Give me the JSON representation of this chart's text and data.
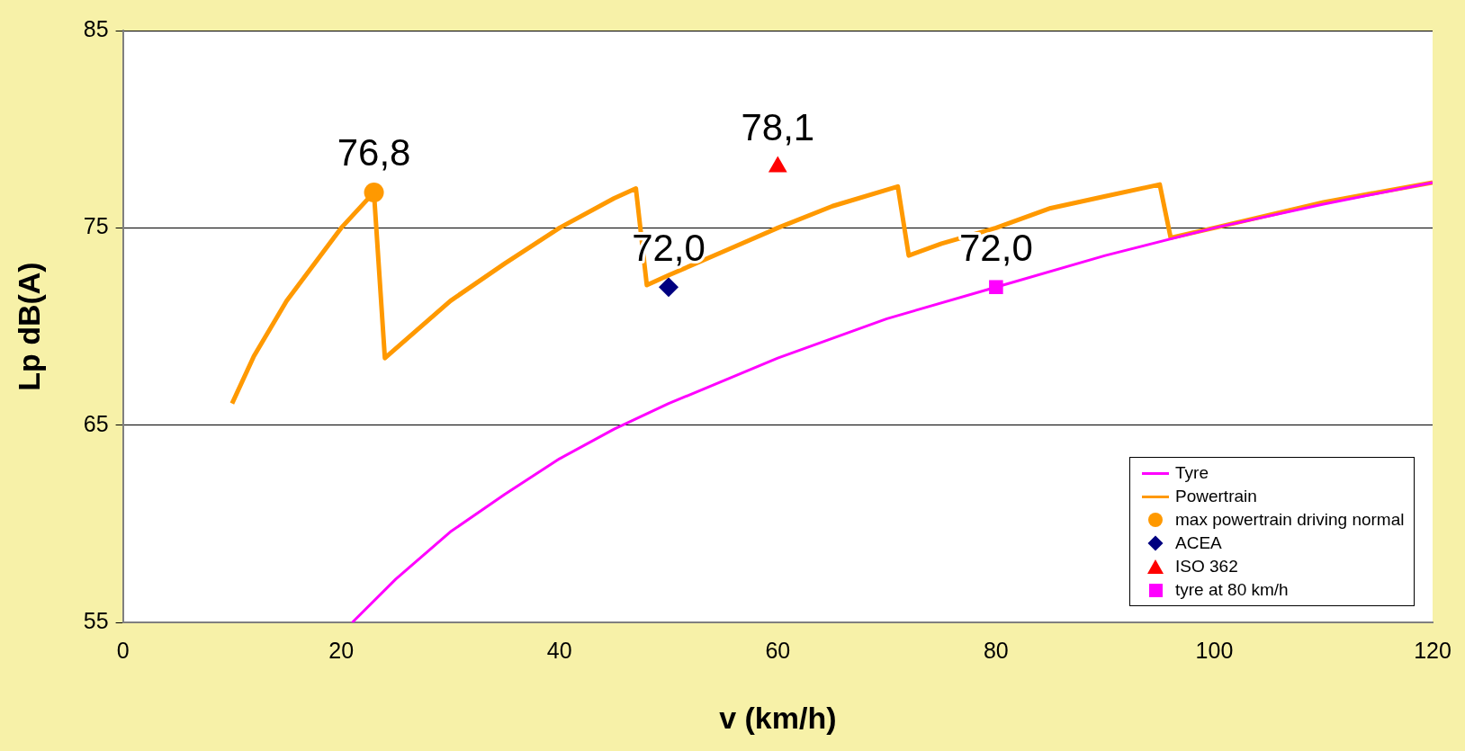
{
  "chart_data": {
    "type": "line",
    "xlabel": "v (km/h)",
    "ylabel": "Lp dB(A)",
    "xlim": [
      0,
      120
    ],
    "xticks": [
      0,
      20,
      40,
      60,
      80,
      100,
      120
    ],
    "ylim": [
      55,
      85
    ],
    "yticks": [
      55,
      65,
      75,
      85
    ],
    "grid": "y",
    "legend": "bottom right",
    "marker": "none",
    "series": [
      {
        "name": "Tyre",
        "color": "#ff00ff",
        "x": [
          21,
          25,
          30,
          35,
          40,
          45,
          50,
          60,
          70,
          80,
          90,
          100,
          110,
          120
        ],
        "values": [
          55,
          57.2,
          59.6,
          61.5,
          63.3,
          64.8,
          66.1,
          68.4,
          70.4,
          72.0,
          73.6,
          75.0,
          76.2,
          77.3
        ]
      },
      {
        "name": "Powertrain",
        "color": "#ff9900",
        "x": [
          10,
          12,
          15,
          20,
          23,
          24,
          30,
          35,
          40,
          45,
          47,
          48,
          50,
          55,
          60,
          65,
          71,
          72,
          75,
          80,
          85,
          90,
          95,
          96,
          100,
          110,
          120
        ],
        "values": [
          66.1,
          68.5,
          71.3,
          75.0,
          76.8,
          68.4,
          71.3,
          73.2,
          75.0,
          76.5,
          77.0,
          72.1,
          72.6,
          73.8,
          75.0,
          76.1,
          77.1,
          73.6,
          74.2,
          75.0,
          76.0,
          76.6,
          77.2,
          74.5,
          75.0,
          76.3,
          77.3
        ]
      },
      {
        "name": "max powertrain driving normal",
        "color": "#ff9900",
        "type": "scatter",
        "marker": "circle",
        "x": [
          23
        ],
        "values": [
          76.8
        ],
        "value_labels": [
          "76,8"
        ]
      },
      {
        "name": "ACEA",
        "color": "#000080",
        "type": "scatter",
        "marker": "diamond",
        "x": [
          50
        ],
        "values": [
          72.0
        ],
        "value_labels": [
          "72,0"
        ]
      },
      {
        "name": "ISO 362",
        "color": "#ff0000",
        "type": "scatter",
        "marker": "triangle",
        "x": [
          60
        ],
        "values": [
          78.1
        ],
        "value_labels": [
          "78,1"
        ]
      },
      {
        "name": "tyre at 80 km/h",
        "color": "#ff00ff",
        "type": "scatter",
        "marker": "square",
        "x": [
          80
        ],
        "values": [
          72.0
        ],
        "value_labels": [
          "72,0"
        ]
      }
    ]
  }
}
